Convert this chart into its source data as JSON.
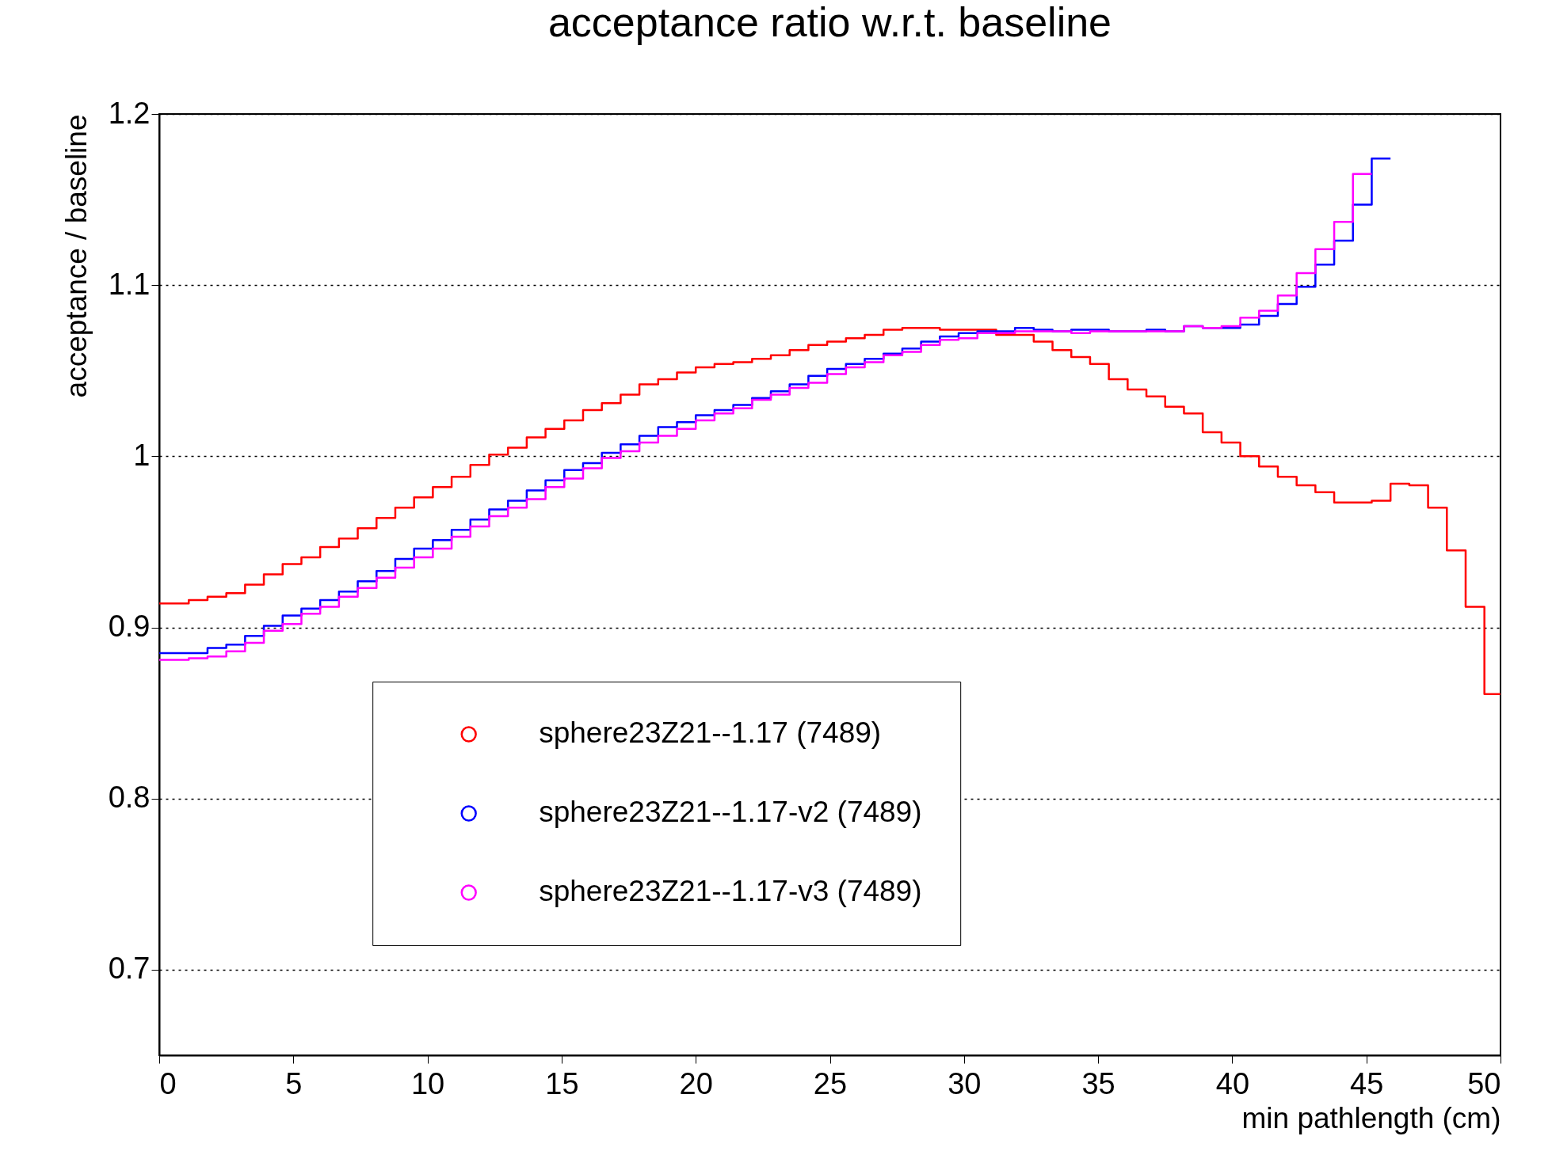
{
  "chart_data": {
    "type": "step",
    "title": "acceptance ratio w.r.t. baseline",
    "xlabel": "min pathlength (cm)",
    "ylabel": "acceptance / baseline",
    "x": [
      0,
      1.1,
      1.8,
      2.5,
      3.2,
      3.9,
      4.6,
      5.3,
      6,
      6.7,
      7.4,
      8.1,
      8.8,
      9.5,
      10.2,
      10.9,
      11.6,
      12.3,
      13,
      13.7,
      14.4,
      15.1,
      15.8,
      16.5,
      17.2,
      17.9,
      18.6,
      19.3,
      20,
      20.7,
      21.4,
      22.1,
      22.8,
      23.5,
      24.2,
      24.9,
      25.6,
      26.3,
      27,
      27.7,
      28.4,
      29.1,
      29.8,
      30.5,
      31.2,
      31.9,
      32.6,
      33.3,
      34,
      34.7,
      35.4,
      36.1,
      36.8,
      37.5,
      38.2,
      38.9,
      39.6,
      40.3,
      41,
      41.7,
      42.4,
      43.1,
      43.8,
      44.5,
      45.2,
      45.9,
      46.6,
      47.3,
      48,
      48.7,
      49.4,
      50
    ],
    "series": [
      {
        "name": "sphere23Z21--1.17 (7489)",
        "color": "#ff0000",
        "values": [
          0.914,
          0.916,
          0.918,
          0.92,
          0.925,
          0.931,
          0.937,
          0.941,
          0.947,
          0.952,
          0.958,
          0.964,
          0.97,
          0.976,
          0.982,
          0.988,
          0.995,
          1.001,
          1.005,
          1.011,
          1.016,
          1.021,
          1.027,
          1.031,
          1.036,
          1.042,
          1.045,
          1.049,
          1.052,
          1.054,
          1.055,
          1.057,
          1.059,
          1.062,
          1.065,
          1.067,
          1.069,
          1.071,
          1.074,
          1.075,
          1.075,
          1.074,
          1.074,
          1.074,
          1.071,
          1.071,
          1.067,
          1.062,
          1.058,
          1.054,
          1.045,
          1.039,
          1.035,
          1.029,
          1.025,
          1.014,
          1.008,
          1.0,
          0.994,
          0.988,
          0.983,
          0.979,
          0.973,
          0.973,
          0.974,
          0.984,
          0.983,
          0.97,
          0.945,
          0.912,
          0.861,
          0.861
        ]
      },
      {
        "name": "sphere23Z21--1.17-v2 (7489)",
        "color": "#0000ff",
        "values": [
          0.885,
          0.885,
          0.888,
          0.89,
          0.895,
          0.901,
          0.907,
          0.911,
          0.916,
          0.921,
          0.927,
          0.933,
          0.94,
          0.946,
          0.951,
          0.957,
          0.963,
          0.969,
          0.974,
          0.98,
          0.986,
          0.992,
          0.996,
          1.002,
          1.007,
          1.012,
          1.017,
          1.02,
          1.024,
          1.027,
          1.03,
          1.034,
          1.038,
          1.042,
          1.047,
          1.051,
          1.054,
          1.057,
          1.06,
          1.063,
          1.067,
          1.07,
          1.072,
          1.073,
          1.073,
          1.075,
          1.074,
          1.073,
          1.074,
          1.074,
          1.073,
          1.073,
          1.074,
          1.073,
          1.076,
          1.075,
          1.075,
          1.077,
          1.082,
          1.089,
          1.099,
          1.112,
          1.126,
          1.147,
          1.174,
          1.174,
          null,
          null,
          null,
          null,
          null,
          null
        ]
      },
      {
        "name": "sphere23Z21--1.17-v3 (7489)",
        "color": "#ff00ff",
        "values": [
          0.881,
          0.882,
          0.883,
          0.886,
          0.891,
          0.898,
          0.902,
          0.908,
          0.912,
          0.918,
          0.923,
          0.929,
          0.935,
          0.941,
          0.946,
          0.953,
          0.959,
          0.965,
          0.97,
          0.975,
          0.982,
          0.987,
          0.993,
          0.999,
          1.003,
          1.008,
          1.012,
          1.016,
          1.021,
          1.025,
          1.028,
          1.033,
          1.036,
          1.04,
          1.043,
          1.048,
          1.052,
          1.055,
          1.059,
          1.061,
          1.065,
          1.068,
          1.069,
          1.072,
          1.072,
          1.073,
          1.073,
          1.073,
          1.072,
          1.073,
          1.073,
          1.073,
          1.073,
          1.073,
          1.076,
          1.075,
          1.076,
          1.081,
          1.085,
          1.094,
          1.107,
          1.121,
          1.137,
          1.165,
          1.165,
          null,
          null,
          null,
          null,
          null,
          null,
          null
        ]
      }
    ],
    "xlim": [
      0,
      50
    ],
    "xticks": [
      0,
      5,
      10,
      15,
      20,
      25,
      30,
      35,
      40,
      45,
      50
    ],
    "ylim": [
      0.65,
      1.2
    ],
    "yticks": [
      0.7,
      0.8,
      0.9,
      1,
      1.1,
      1.2
    ],
    "grid": "y",
    "legend": "bottom left"
  }
}
